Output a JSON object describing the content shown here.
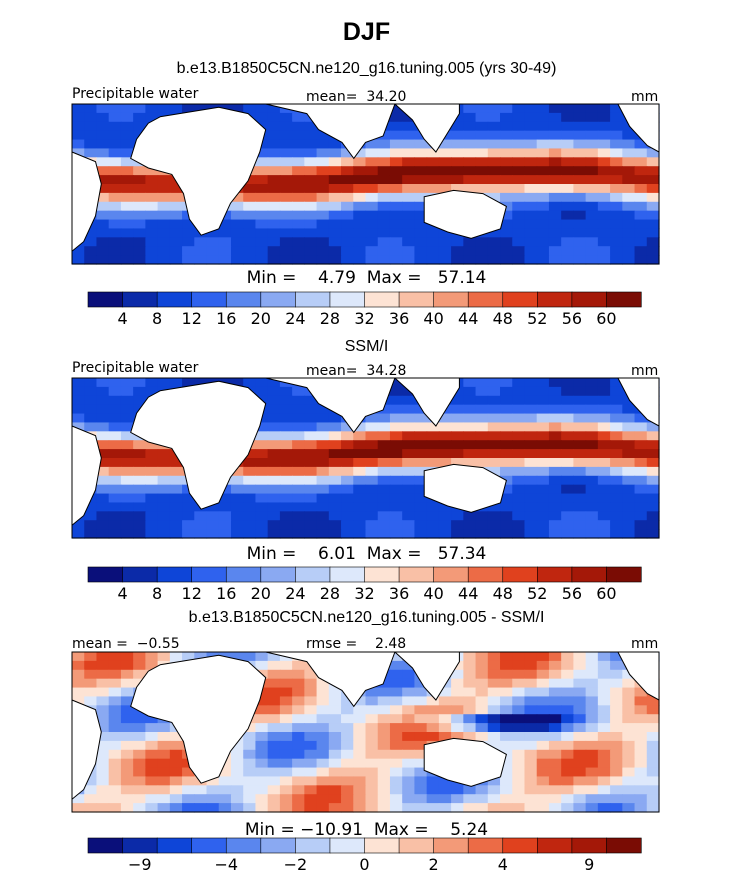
{
  "figure": {
    "title": "DJF"
  },
  "chart_data": [
    {
      "type": "heatmap",
      "subtitle": "b.e13.B1850C5CN.ne120_g16.tuning.005 (yrs 30-49)",
      "label_left": "Precipitable water",
      "label_center": "mean=  34.20",
      "units": "mm",
      "min_max": "Min =    4.79  Max =   57.14",
      "colorbar_ticks": [
        "4",
        "8",
        "12",
        "16",
        "20",
        "24",
        "28",
        "32",
        "36",
        "40",
        "44",
        "48",
        "52",
        "56",
        "60"
      ],
      "value_range": [
        4.79,
        57.14
      ]
    },
    {
      "type": "heatmap",
      "subtitle": "SSM/I",
      "label_left": "Precipitable water",
      "label_center": "mean=  34.28",
      "units": "mm",
      "min_max": "Min =    6.01  Max =   57.34",
      "colorbar_ticks": [
        "4",
        "8",
        "12",
        "16",
        "20",
        "24",
        "28",
        "32",
        "36",
        "40",
        "44",
        "48",
        "52",
        "56",
        "60"
      ],
      "value_range": [
        6.01,
        57.34
      ]
    },
    {
      "type": "heatmap",
      "subtitle": "b.e13.B1850C5CN.ne120_g16.tuning.005 - SSM/I",
      "label_left": "mean =  −0.55",
      "label_center": "rmse =    2.48",
      "units": "mm",
      "min_max": "Min = −10.91  Max =    5.24",
      "colorbar_ticks": [
        "−9",
        "−4",
        "−2",
        "0",
        "2",
        "4",
        "9"
      ],
      "value_range": [
        -10.91,
        5.24
      ]
    }
  ],
  "colors": {
    "palette": [
      "#0a0f7a",
      "#0b2aa8",
      "#0e45d8",
      "#2f62ee",
      "#5a86ee",
      "#8aa9f2",
      "#b7cdf7",
      "#dde8fb",
      "#fde3d4",
      "#f9c0a6",
      "#f39a78",
      "#ec6b46",
      "#e0411e",
      "#c0260f",
      "#a41808",
      "#7a0c04"
    ],
    "land": "#ffffff",
    "coast": "#000000"
  }
}
